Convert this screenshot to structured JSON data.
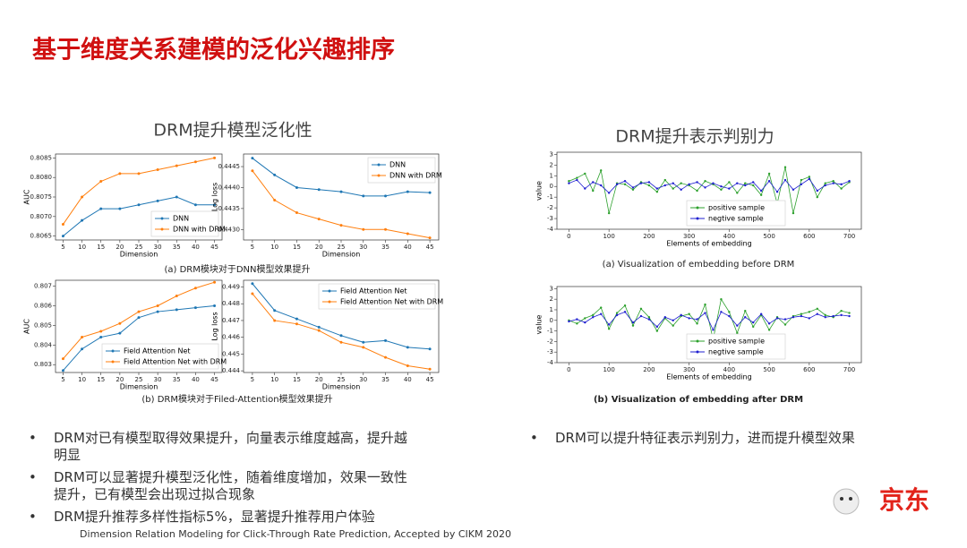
{
  "header": {
    "title": "基于维度关系建模的泛化兴趣排序"
  },
  "sections": [
    "DRM提升模型泛化性",
    "DRM提升表示判别力"
  ],
  "captions": [
    "(a) DRM模块对于DNN模型效果提升",
    "(b) DRM模块对于Filed-Attention模型效果提升",
    "(a) Visualization of embedding before DRM",
    "(b) Visualization of embedding after DRM"
  ],
  "bullets_left": [
    "DRM对已有模型取得效果提升，向量表示维度越高，提升越明显",
    "DRM可以显著提升模型泛化性，随着维度增加，效果一致性提升，已有模型会出现过拟合现象",
    "DRM提升推荐多样性指标5%，显著提升推荐用户体验"
  ],
  "bullets_right": [
    "DRM可以提升特征表示判别力，进而提升模型效果"
  ],
  "footer": "Dimension Relation Modeling for Click-Through Rate Prediction,  Accepted by CIKM 2020",
  "logo": "京东",
  "chart_data": [
    {
      "type": "line",
      "x_label": "Dimension",
      "y_label": "AUC",
      "x": [
        5,
        10,
        15,
        20,
        25,
        30,
        35,
        40,
        45
      ],
      "xlim": [
        3,
        47
      ],
      "xticks": [
        5,
        10,
        15,
        20,
        25,
        30,
        35,
        40,
        45
      ],
      "ylim": [
        0.8064,
        0.8086
      ],
      "yticks": [
        0.8065,
        {
          "value": 0.807,
          "label": "0.8070"
        },
        0.8075,
        {
          "value": 0.808,
          "label": "0.8080"
        },
        0.8085
      ],
      "legend": "lower right",
      "series": [
        {
          "name": "DNN",
          "color": "#1f77b4",
          "values": [
            0.8065,
            0.8069,
            0.8072,
            0.8072,
            0.8073,
            0.8074,
            0.8075,
            0.8073,
            0.8073
          ]
        },
        {
          "name": "DNN with DRM",
          "color": "#ff7f0e",
          "values": [
            0.8068,
            0.8075,
            0.8079,
            0.8081,
            0.8081,
            0.8082,
            0.8083,
            0.8084,
            0.8085
          ]
        }
      ]
    },
    {
      "type": "line",
      "x_label": "Dimension",
      "y_label": "Log loss",
      "x": [
        5,
        10,
        15,
        20,
        25,
        30,
        35,
        40,
        45
      ],
      "xlim": [
        3,
        47
      ],
      "xticks": [
        5,
        10,
        15,
        20,
        25,
        30,
        35,
        40,
        45
      ],
      "ylim": [
        0.44275,
        0.4448
      ],
      "yticks": [
        {
          "value": 0.443,
          "label": "0.4430"
        },
        0.4435,
        {
          "value": 0.444,
          "label": "0.4440"
        },
        0.4445
      ],
      "legend": "upper right",
      "series": [
        {
          "name": "DNN",
          "color": "#1f77b4",
          "values": [
            0.4447,
            0.4443,
            0.444,
            0.44395,
            0.4439,
            0.4438,
            0.4438,
            0.4439,
            0.44388
          ]
        },
        {
          "name": "DNN with DRM",
          "color": "#ff7f0e",
          "values": [
            0.4444,
            0.4437,
            0.4434,
            0.44325,
            0.4431,
            0.443,
            0.443,
            0.4429,
            0.4428
          ]
        }
      ]
    },
    {
      "type": "line",
      "x_label": "Dimension",
      "y_label": "AUC",
      "x": [
        5,
        10,
        15,
        20,
        25,
        30,
        35,
        40,
        45
      ],
      "xlim": [
        3,
        47
      ],
      "xticks": [
        5,
        10,
        15,
        20,
        25,
        30,
        35,
        40,
        45
      ],
      "ylim": [
        0.8026,
        0.8073
      ],
      "yticks": [
        0.803,
        0.804,
        0.805,
        0.806,
        0.807
      ],
      "legend": "lower right",
      "series": [
        {
          "name": "Field Attention Net",
          "color": "#1f77b4",
          "values": [
            0.8027,
            0.8038,
            0.8044,
            0.8046,
            0.8054,
            0.8057,
            0.8058,
            0.8059,
            0.806
          ]
        },
        {
          "name": "Field Attention Net with DRM",
          "color": "#ff7f0e",
          "values": [
            0.8033,
            0.8044,
            0.8047,
            0.8051,
            0.8057,
            0.806,
            0.8065,
            0.8069,
            0.8072
          ]
        }
      ]
    },
    {
      "type": "line",
      "x_label": "Dimension",
      "y_label": "Log loss",
      "x": [
        5,
        10,
        15,
        20,
        25,
        30,
        35,
        40,
        45
      ],
      "xlim": [
        3,
        47
      ],
      "xticks": [
        5,
        10,
        15,
        20,
        25,
        30,
        35,
        40,
        45
      ],
      "ylim": [
        0.4439,
        0.4494
      ],
      "yticks": [
        0.444,
        0.445,
        0.446,
        0.447,
        0.448,
        0.449
      ],
      "legend": "upper right",
      "series": [
        {
          "name": "Field Attention Net",
          "color": "#1f77b4",
          "values": [
            0.4492,
            0.4476,
            0.4471,
            0.4466,
            0.4461,
            0.4457,
            0.4458,
            0.4454,
            0.4453
          ]
        },
        {
          "name": "Field Attention Net with DRM",
          "color": "#ff7f0e",
          "values": [
            0.4486,
            0.447,
            0.4468,
            0.4464,
            0.4457,
            0.4454,
            0.4448,
            0.4443,
            0.4441
          ]
        }
      ]
    },
    {
      "type": "line",
      "x_label": "Elements of embedding",
      "y_label": "value",
      "x": [
        0,
        20,
        40,
        60,
        80,
        100,
        120,
        140,
        160,
        180,
        200,
        220,
        240,
        260,
        280,
        300,
        320,
        340,
        360,
        380,
        400,
        420,
        440,
        460,
        480,
        500,
        520,
        540,
        560,
        580,
        600,
        620,
        640,
        660,
        680,
        700
      ],
      "xlim": [
        -30,
        730
      ],
      "xticks": [
        0,
        100,
        200,
        300,
        400,
        500,
        600,
        700
      ],
      "ylim": [
        -4,
        3.2
      ],
      "yticks": [
        -4,
        -3,
        -2,
        -1,
        0,
        1,
        2,
        3
      ],
      "legend": "lower center",
      "series": [
        {
          "name": "positive sample",
          "color": "#2ca02c",
          "values": [
            0.5,
            0.8,
            1.2,
            -0.4,
            1.5,
            -2.5,
            0.3,
            0.2,
            -0.3,
            0.4,
            0.1,
            -0.5,
            0.6,
            -0.2,
            0.3,
            0.1,
            -0.4,
            0.5,
            0.2,
            -0.3,
            0.4,
            -0.6,
            0.3,
            0.1,
            -0.8,
            1.2,
            -1.6,
            1.8,
            -2.5,
            0.6,
            0.9,
            -1.0,
            0.3,
            0.5,
            -0.2,
            0.4
          ]
        },
        {
          "name": "negtive sample",
          "color": "#1f1fd0",
          "values": [
            0.3,
            0.6,
            -0.2,
            0.4,
            0.1,
            -0.6,
            0.2,
            0.5,
            -0.1,
            0.3,
            0.4,
            -0.2,
            0.1,
            0.3,
            -0.3,
            0.2,
            0.4,
            -0.1,
            0.3,
            0.0,
            -0.2,
            0.3,
            0.1,
            0.4,
            -0.4,
            0.5,
            -0.5,
            0.6,
            -0.3,
            0.2,
            0.7,
            -0.4,
            0.1,
            0.3,
            0.2,
            0.5
          ]
        }
      ]
    },
    {
      "type": "line",
      "x_label": "Elements of embedding",
      "y_label": "value",
      "x": [
        0,
        20,
        40,
        60,
        80,
        100,
        120,
        140,
        160,
        180,
        200,
        220,
        240,
        260,
        280,
        300,
        320,
        340,
        360,
        380,
        400,
        420,
        440,
        460,
        480,
        500,
        520,
        540,
        560,
        580,
        600,
        620,
        640,
        660,
        680,
        700
      ],
      "xlim": [
        -30,
        730
      ],
      "xticks": [
        0,
        100,
        200,
        300,
        400,
        500,
        600,
        700
      ],
      "ylim": [
        -4,
        3.2
      ],
      "yticks": [
        -4,
        -3,
        -2,
        -1,
        0,
        1,
        2,
        3
      ],
      "legend": "lower center",
      "series": [
        {
          "name": "positive sample",
          "color": "#2ca02c",
          "values": [
            0,
            -0.3,
            0.2,
            0.5,
            1.2,
            -0.8,
            0.7,
            1.4,
            -0.5,
            1.1,
            0.3,
            -1.0,
            0.2,
            -0.5,
            0.4,
            0.6,
            -0.3,
            1.5,
            -1.8,
            2.0,
            0.8,
            -1.2,
            0.9,
            -0.6,
            0.5,
            -0.9,
            0.3,
            -0.4,
            0.4,
            0.6,
            0.8,
            1.1,
            0.5,
            0.3,
            0.9,
            0.7
          ]
        },
        {
          "name": "negtive sample",
          "color": "#1f1fd0",
          "values": [
            -0.1,
            0.1,
            -0.2,
            0.3,
            0.6,
            -0.4,
            0.5,
            0.8,
            -0.2,
            0.4,
            0.1,
            -0.6,
            0.3,
            0.0,
            0.5,
            0.2,
            0.1,
            0.7,
            -0.9,
            0.8,
            0.4,
            -0.5,
            0.3,
            -0.2,
            0.6,
            -0.3,
            0.2,
            0.1,
            0.3,
            0.4,
            0.2,
            0.6,
            0.3,
            0.4,
            0.5,
            0.4
          ]
        }
      ]
    }
  ]
}
